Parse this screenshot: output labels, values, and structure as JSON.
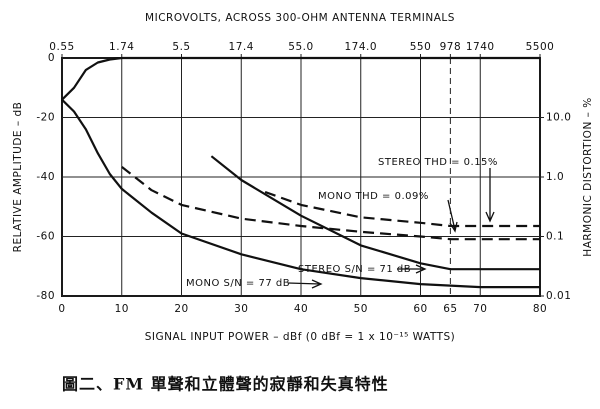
{
  "chart_data": {
    "type": "line",
    "x2label": "MICROVOLTS, ACROSS 300-OHM ANTENNA TERMINALS",
    "xlabel": "SIGNAL INPUT POWER – dBf (0 dBf = 1 x 10⁻¹⁵ WATTS)",
    "ylabel": "RELATIVE AMPLITUDE – dB",
    "y2label": "HARMONIC DISTORTION – %",
    "caption": "圖二、FM 單聲和立體聲的寂靜和失真特性",
    "xlim": [
      0,
      80
    ],
    "xticks": [
      0,
      10,
      20,
      30,
      40,
      50,
      60,
      65,
      70,
      80
    ],
    "x2ticks": [
      {
        "value": 0,
        "label": "0.55"
      },
      {
        "value": 10,
        "label": "1.74"
      },
      {
        "value": 20,
        "label": "5.5"
      },
      {
        "value": 30,
        "label": "17.4"
      },
      {
        "value": 40,
        "label": "55.0"
      },
      {
        "value": 50,
        "label": "174.0"
      },
      {
        "value": 60,
        "label": "550"
      },
      {
        "value": 65,
        "label": "978"
      },
      {
        "value": 70,
        "label": "1740"
      },
      {
        "value": 80,
        "label": "5500"
      }
    ],
    "ylim": [
      -80,
      0
    ],
    "yticks": [
      0,
      -20,
      -40,
      -60,
      -80
    ],
    "y2lim": [
      0.01,
      100
    ],
    "y2scale": "log",
    "y2ticks": [
      {
        "value": 10,
        "label": "10.0"
      },
      {
        "value": 1,
        "label": "1.0"
      },
      0.1,
      0.01
    ],
    "grid": true,
    "series": [
      {
        "color": "#111111",
        "line_style": "solid",
        "x": [
          0,
          2,
          4,
          6,
          8,
          10,
          80
        ],
        "values": [
          -14,
          -10,
          -4,
          -1.5,
          -0.5,
          0,
          0
        ]
      },
      {
        "color": "#111111",
        "line_style": "solid",
        "x": [
          0,
          2,
          4,
          6,
          8,
          10,
          15,
          20,
          30,
          40,
          50,
          60,
          70,
          80
        ],
        "values": [
          -14,
          -18,
          -24,
          -32,
          -39,
          -44,
          -52,
          -59,
          -66,
          -71,
          -74,
          -76,
          -77,
          -77
        ]
      },
      {
        "color": "#111111",
        "line_style": "solid",
        "x": [
          25,
          30,
          40,
          50,
          60,
          65,
          80
        ],
        "values": [
          -33,
          -41,
          -53,
          -63,
          -69,
          -71,
          -71
        ]
      },
      {
        "color": "#111111",
        "line_style": "dashed",
        "axis": "y2",
        "x": [
          10,
          15,
          20,
          30,
          40,
          50,
          60,
          65,
          80
        ],
        "values": [
          1.48,
          0.6,
          0.34,
          0.2,
          0.15,
          0.12,
          0.1,
          0.09,
          0.09
        ]
      },
      {
        "color": "#111111",
        "line_style": "dashed",
        "axis": "y2",
        "x": [
          34,
          40,
          50,
          60,
          65,
          80
        ],
        "values": [
          0.56,
          0.34,
          0.21,
          0.17,
          0.15,
          0.15
        ]
      }
    ],
    "annotations": [
      "STEREO THD = 0.15%",
      "MONO THD = 0.09%",
      "STEREO S/N = 71 dB",
      "MONO S/N = 77 dB"
    ]
  }
}
